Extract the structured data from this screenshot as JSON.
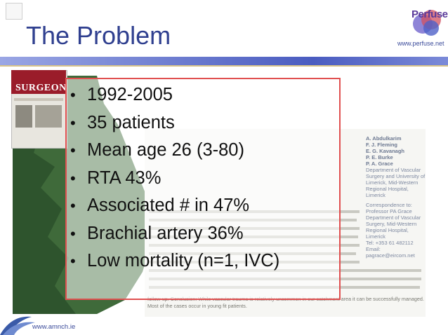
{
  "slide": {
    "title": "The Problem",
    "brand": {
      "logo_text": "Perfuse",
      "website_top": "www.perfuse.net",
      "website_bottom": "www.amnch.ie"
    },
    "bullets": [
      "1992-2005",
      "35 patients",
      "Mean age 26 (3-80)",
      "RTA 43%",
      "Associated # in 47%",
      "Brachial artery 36%",
      "Low mortality (n=1, IVC)"
    ],
    "journal_cover": {
      "title": "SURGEON"
    },
    "article": {
      "authors": [
        "A. Abdulkarim",
        "F. J. Fleming",
        "E. G. Kavanagh",
        "P. E. Burke",
        "P. A. Grace"
      ],
      "affiliation": [
        "Department of Vascular",
        "Surgery and University of",
        "Limerick, Mid-Western",
        "Regional Hospital, Limerick"
      ],
      "correspondence": [
        "Correspondence to:",
        "Professor PA Grace",
        "Department of Vascular",
        "Surgery, Mid-Western",
        "Regional Hospital, Limerick",
        "Tel: +353 61 482112",
        "Email: pagrace@eircom.net"
      ],
      "abstract_tail": "follow-up. Conclusion: While vascular trauma is relatively uncommon in our catchment area it can be successfully managed. Most of the cases occur in young fit patients."
    },
    "colors": {
      "title": "#2f3f8f",
      "panel_border": "#e05050",
      "bar": "#4a5cc0"
    }
  }
}
